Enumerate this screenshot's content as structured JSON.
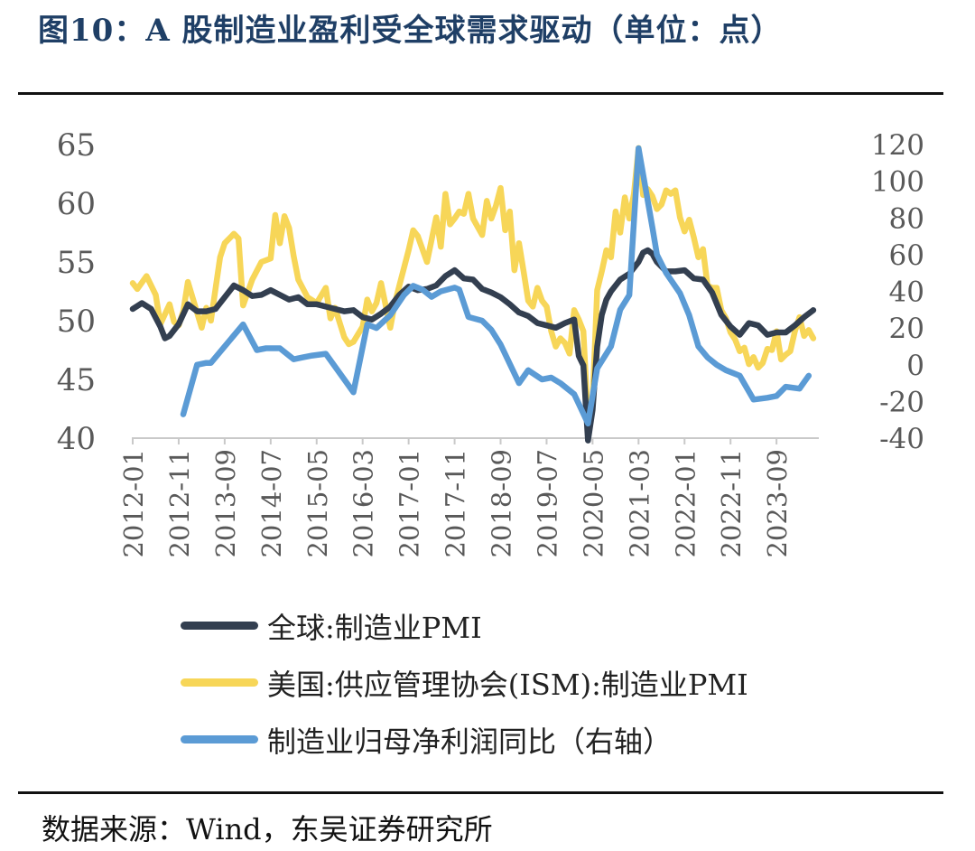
{
  "figure": {
    "title": "图10：A 股制造业盈利受全球需求驱动（单位：点）",
    "source": "数据来源：Wind，东吴证券研究所"
  },
  "chart_data": {
    "type": "line",
    "title": "图10：A 股制造业盈利受全球需求驱动（单位：点）",
    "xlabel": "",
    "ylabel_left": "",
    "ylabel_right": "",
    "ylim_left": [
      40,
      65
    ],
    "ylim_right": [
      -40,
      120
    ],
    "yticks_left": [
      "65",
      "60",
      "55",
      "50",
      "45",
      "40"
    ],
    "yticks_right": [
      "120",
      "100",
      "80",
      "60",
      "40",
      "20",
      "0",
      "-20",
      "-40"
    ],
    "x_tick_labels": [
      "2012-01",
      "2012-11",
      "2013-09",
      "2014-07",
      "2015-05",
      "2016-03",
      "2017-01",
      "2017-11",
      "2018-09",
      "2019-07",
      "2020-05",
      "2021-03",
      "2022-01",
      "2022-11",
      "2023-09"
    ],
    "x_tick_months": [
      0,
      10,
      20,
      30,
      40,
      50,
      60,
      70,
      80,
      90,
      100,
      110,
      120,
      130,
      140
    ],
    "x_range_months": [
      0,
      149
    ],
    "grid": false,
    "legend_position": "bottom",
    "series": [
      {
        "name": "全球:制造业PMI",
        "color": "#333f50",
        "axis": "left",
        "points": [
          [
            0,
            51.0
          ],
          [
            2,
            51.5
          ],
          [
            4,
            51.0
          ],
          [
            6,
            49.5
          ],
          [
            7,
            48.5
          ],
          [
            8,
            48.7
          ],
          [
            10,
            49.7
          ],
          [
            12,
            51.4
          ],
          [
            14,
            50.8
          ],
          [
            16,
            50.8
          ],
          [
            18,
            51.0
          ],
          [
            20,
            52.0
          ],
          [
            22,
            53.0
          ],
          [
            24,
            52.6
          ],
          [
            26,
            52.1
          ],
          [
            28,
            52.2
          ],
          [
            30,
            52.6
          ],
          [
            32,
            52.2
          ],
          [
            34,
            51.8
          ],
          [
            36,
            52.0
          ],
          [
            38,
            51.4
          ],
          [
            40,
            51.4
          ],
          [
            42,
            51.2
          ],
          [
            44,
            51.0
          ],
          [
            46,
            50.8
          ],
          [
            48,
            50.9
          ],
          [
            50,
            50.3
          ],
          [
            52,
            50.1
          ],
          [
            54,
            50.6
          ],
          [
            56,
            51.2
          ],
          [
            58,
            52.2
          ],
          [
            60,
            52.9
          ],
          [
            62,
            52.6
          ],
          [
            64,
            52.7
          ],
          [
            66,
            53.0
          ],
          [
            68,
            53.8
          ],
          [
            70,
            54.3
          ],
          [
            72,
            53.6
          ],
          [
            74,
            53.5
          ],
          [
            76,
            52.7
          ],
          [
            78,
            52.4
          ],
          [
            80,
            52.0
          ],
          [
            82,
            51.4
          ],
          [
            84,
            50.7
          ],
          [
            86,
            50.4
          ],
          [
            88,
            49.8
          ],
          [
            90,
            49.6
          ],
          [
            92,
            49.4
          ],
          [
            94,
            49.8
          ],
          [
            96,
            50.1
          ],
          [
            97,
            47.0
          ],
          [
            98,
            46.2
          ],
          [
            99,
            39.8
          ],
          [
            100,
            42.4
          ],
          [
            101,
            47.8
          ],
          [
            102,
            50.5
          ],
          [
            103,
            51.8
          ],
          [
            104,
            52.5
          ],
          [
            106,
            53.5
          ],
          [
            108,
            54.0
          ],
          [
            110,
            55.0
          ],
          [
            111,
            55.8
          ],
          [
            112,
            56.0
          ],
          [
            113,
            55.7
          ],
          [
            114,
            55.0
          ],
          [
            116,
            54.2
          ],
          [
            118,
            54.2
          ],
          [
            120,
            54.3
          ],
          [
            122,
            53.6
          ],
          [
            124,
            53.5
          ],
          [
            126,
            52.4
          ],
          [
            128,
            50.5
          ],
          [
            130,
            49.5
          ],
          [
            132,
            48.8
          ],
          [
            134,
            49.8
          ],
          [
            136,
            49.6
          ],
          [
            138,
            48.8
          ],
          [
            140,
            49.0
          ],
          [
            142,
            49.0
          ],
          [
            144,
            49.6
          ],
          [
            146,
            50.3
          ],
          [
            148,
            50.9
          ]
        ]
      },
      {
        "name": "美国:供应管理协会(ISM):制造业PMI",
        "color": "#f7d658",
        "axis": "left",
        "points": [
          [
            0,
            53.2
          ],
          [
            1,
            52.7
          ],
          [
            3,
            53.8
          ],
          [
            5,
            52.2
          ],
          [
            6,
            49.7
          ],
          [
            8,
            51.4
          ],
          [
            9,
            49.9
          ],
          [
            10,
            49.6
          ],
          [
            11,
            50.8
          ],
          [
            12,
            53.3
          ],
          [
            14,
            50.7
          ],
          [
            15,
            49.4
          ],
          [
            16,
            51.1
          ],
          [
            17,
            50.0
          ],
          [
            19,
            55.4
          ],
          [
            20,
            56.6
          ],
          [
            22,
            57.4
          ],
          [
            23,
            57.0
          ],
          [
            24,
            51.3
          ],
          [
            26,
            53.5
          ],
          [
            28,
            55.0
          ],
          [
            30,
            55.3
          ],
          [
            31,
            59.0
          ],
          [
            32,
            56.6
          ],
          [
            33,
            58.9
          ],
          [
            34,
            57.9
          ],
          [
            35,
            55.5
          ],
          [
            36,
            53.5
          ],
          [
            38,
            52.0
          ],
          [
            40,
            51.5
          ],
          [
            42,
            52.8
          ],
          [
            43,
            50.2
          ],
          [
            44,
            51.1
          ],
          [
            46,
            48.6
          ],
          [
            47,
            48.0
          ],
          [
            48,
            48.2
          ],
          [
            50,
            49.5
          ],
          [
            51,
            51.8
          ],
          [
            52,
            50.8
          ],
          [
            53,
            51.5
          ],
          [
            54,
            53.2
          ],
          [
            56,
            49.4
          ],
          [
            57,
            51.5
          ],
          [
            58,
            53.0
          ],
          [
            60,
            56.0
          ],
          [
            61,
            57.7
          ],
          [
            62,
            57.2
          ],
          [
            64,
            55.0
          ],
          [
            66,
            58.8
          ],
          [
            67,
            56.3
          ],
          [
            68,
            60.8
          ],
          [
            69,
            58.2
          ],
          [
            70,
            58.7
          ],
          [
            71,
            59.3
          ],
          [
            72,
            59.1
          ],
          [
            73,
            60.8
          ],
          [
            74,
            58.7
          ],
          [
            76,
            57.3
          ],
          [
            77,
            60.2
          ],
          [
            78,
            58.7
          ],
          [
            79,
            59.8
          ],
          [
            80,
            61.3
          ],
          [
            81,
            57.7
          ],
          [
            82,
            59.3
          ],
          [
            83,
            54.3
          ],
          [
            84,
            56.6
          ],
          [
            85,
            54.2
          ],
          [
            86,
            51.7
          ],
          [
            87,
            51.2
          ],
          [
            88,
            52.8
          ],
          [
            89,
            51.7
          ],
          [
            90,
            51.2
          ],
          [
            91,
            49.1
          ],
          [
            92,
            47.8
          ],
          [
            93,
            48.5
          ],
          [
            94,
            48.1
          ],
          [
            95,
            47.2
          ],
          [
            96,
            50.9
          ],
          [
            97,
            50.1
          ],
          [
            98,
            49.1
          ],
          [
            99,
            41.5
          ],
          [
            100,
            43.1
          ],
          [
            101,
            52.6
          ],
          [
            102,
            54.2
          ],
          [
            103,
            56.0
          ],
          [
            104,
            55.4
          ],
          [
            105,
            59.3
          ],
          [
            106,
            57.5
          ],
          [
            107,
            60.5
          ],
          [
            108,
            58.7
          ],
          [
            109,
            60.8
          ],
          [
            110,
            64.7
          ],
          [
            111,
            60.7
          ],
          [
            112,
            61.2
          ],
          [
            113,
            60.6
          ],
          [
            114,
            59.5
          ],
          [
            115,
            59.9
          ],
          [
            116,
            61.1
          ],
          [
            117,
            60.8
          ],
          [
            118,
            61.1
          ],
          [
            119,
            58.8
          ],
          [
            120,
            57.6
          ],
          [
            121,
            58.6
          ],
          [
            122,
            57.1
          ],
          [
            123,
            55.4
          ],
          [
            124,
            56.1
          ],
          [
            125,
            53.0
          ],
          [
            126,
            52.8
          ],
          [
            127,
            52.8
          ],
          [
            128,
            50.9
          ],
          [
            129,
            50.2
          ],
          [
            130,
            49.0
          ],
          [
            131,
            48.4
          ],
          [
            132,
            47.4
          ],
          [
            133,
            47.7
          ],
          [
            134,
            46.3
          ],
          [
            135,
            46.9
          ],
          [
            136,
            46.0
          ],
          [
            137,
            46.4
          ],
          [
            138,
            47.6
          ],
          [
            139,
            47.5
          ],
          [
            140,
            49.1
          ],
          [
            141,
            46.7
          ],
          [
            142,
            47.1
          ],
          [
            143,
            47.4
          ],
          [
            144,
            49.1
          ],
          [
            145,
            50.3
          ],
          [
            146,
            48.7
          ],
          [
            147,
            49.2
          ],
          [
            148,
            48.5
          ]
        ]
      },
      {
        "name": "制造业归母净利润同比（右轴）",
        "color": "#5b9bd5",
        "axis": "right",
        "points": [
          [
            11,
            -27
          ],
          [
            14,
            0
          ],
          [
            16,
            1
          ],
          [
            17,
            1
          ],
          [
            20,
            10
          ],
          [
            24,
            22
          ],
          [
            27,
            8
          ],
          [
            29,
            9
          ],
          [
            32,
            9
          ],
          [
            35,
            3
          ],
          [
            37,
            4
          ],
          [
            39,
            5
          ],
          [
            42,
            6
          ],
          [
            48,
            -15
          ],
          [
            51,
            22
          ],
          [
            53,
            20
          ],
          [
            56,
            27
          ],
          [
            59,
            38
          ],
          [
            61,
            43
          ],
          [
            63,
            41
          ],
          [
            65,
            37
          ],
          [
            67,
            40
          ],
          [
            70,
            42
          ],
          [
            71,
            41
          ],
          [
            73,
            26
          ],
          [
            76,
            24
          ],
          [
            78,
            19
          ],
          [
            80,
            11
          ],
          [
            84,
            -10
          ],
          [
            86,
            -3
          ],
          [
            89,
            -8
          ],
          [
            91,
            -7
          ],
          [
            93,
            -10
          ],
          [
            96,
            -16
          ],
          [
            99,
            -32
          ],
          [
            101,
            -2
          ],
          [
            104,
            10
          ],
          [
            106,
            30
          ],
          [
            108,
            38
          ],
          [
            110,
            118
          ],
          [
            113,
            75
          ],
          [
            114,
            60
          ],
          [
            116,
            50
          ],
          [
            119,
            39
          ],
          [
            121,
            27
          ],
          [
            123,
            10
          ],
          [
            125,
            4
          ],
          [
            127,
            0
          ],
          [
            129,
            -3
          ],
          [
            132,
            -6
          ],
          [
            135,
            -19
          ],
          [
            138,
            -18
          ],
          [
            140,
            -17
          ],
          [
            142,
            -12
          ],
          [
            145,
            -13
          ],
          [
            147,
            -6
          ]
        ]
      }
    ]
  },
  "legend": {
    "items": [
      {
        "label": "全球:制造业PMI",
        "color": "#333f50"
      },
      {
        "label": "美国:供应管理协会(ISM):制造业PMI",
        "color": "#f7d658"
      },
      {
        "label": "制造业归母净利润同比（右轴）",
        "color": "#5b9bd5"
      }
    ]
  }
}
